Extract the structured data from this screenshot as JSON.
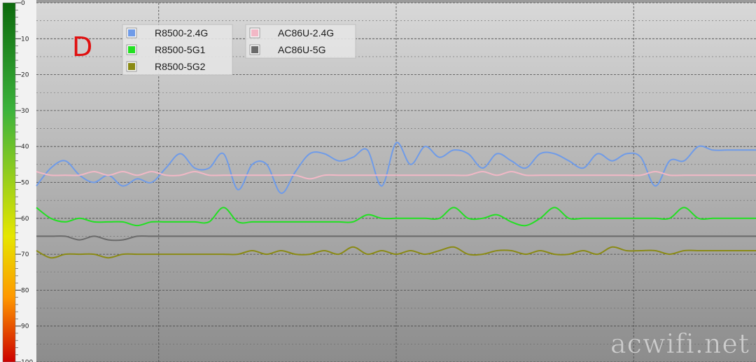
{
  "chart_data": {
    "type": "line",
    "ylim": [
      0,
      100
    ],
    "y_ticks": [
      "0",
      "10",
      "20",
      "30",
      "40",
      "50",
      "60",
      "70",
      "80",
      "90",
      "100"
    ],
    "x": [
      0,
      2,
      4,
      6,
      8,
      10,
      12,
      14,
      16,
      18,
      20,
      22,
      24,
      26,
      28,
      30,
      32,
      34,
      36,
      38,
      40,
      42,
      44,
      46,
      48,
      50,
      52,
      54,
      56,
      58,
      60,
      62,
      64,
      66,
      68,
      70,
      72,
      74,
      76,
      78,
      80,
      82,
      84,
      86,
      88,
      90,
      92,
      94,
      96,
      98,
      100
    ],
    "series": [
      {
        "name": "R8500-2.4G",
        "color": "#6f9be8",
        "values": [
          51,
          46,
          44,
          48,
          50,
          48,
          51,
          49,
          50,
          46,
          42,
          46,
          46,
          42,
          52,
          45,
          45,
          53,
          47,
          42,
          42,
          44,
          43,
          41,
          51,
          39,
          45,
          40,
          43,
          41,
          42,
          46,
          42,
          44,
          46,
          42,
          42,
          44,
          46,
          42,
          44,
          42,
          43,
          51,
          44,
          44,
          40,
          41,
          41,
          41,
          41
        ]
      },
      {
        "name": "AC86U-2.4G",
        "color": "#f2b8c6",
        "values": [
          47,
          48,
          48,
          48,
          47,
          48,
          47,
          48,
          47,
          48,
          48,
          47,
          48,
          48,
          48,
          48,
          48,
          48,
          48,
          49,
          48,
          48,
          48,
          48,
          48,
          48,
          48,
          48,
          48,
          48,
          48,
          47,
          48,
          47,
          48,
          48,
          48,
          48,
          48,
          48,
          48,
          48,
          48,
          47,
          48,
          48,
          48,
          48,
          48,
          48,
          48
        ]
      },
      {
        "name": "R8500-5G1",
        "color": "#22e022",
        "values": [
          57,
          60,
          61,
          60,
          61,
          61,
          61,
          62,
          61,
          61,
          61,
          61,
          61,
          57,
          61,
          61,
          61,
          61,
          61,
          61,
          61,
          61,
          61,
          59,
          60,
          60,
          60,
          60,
          60,
          57,
          60,
          60,
          59,
          61,
          62,
          60,
          57,
          60,
          60,
          60,
          60,
          60,
          60,
          60,
          60,
          57,
          60,
          60,
          60,
          60,
          60
        ]
      },
      {
        "name": "AC86U-5G",
        "color": "#6a6a6a",
        "values": [
          65,
          65,
          65,
          66,
          65,
          66,
          66,
          65,
          65,
          65,
          65,
          65,
          65,
          65,
          65,
          65,
          65,
          65,
          65,
          65,
          65,
          65,
          65,
          65,
          65,
          65,
          65,
          65,
          65,
          65,
          65,
          65,
          65,
          65,
          65,
          65,
          65,
          65,
          65,
          65,
          65,
          65,
          65,
          65,
          65,
          65,
          65,
          65,
          65,
          65,
          65
        ]
      },
      {
        "name": "R8500-5G2",
        "color": "#8a8a14",
        "values": [
          69,
          71,
          70,
          70,
          70,
          71,
          70,
          70,
          70,
          70,
          70,
          70,
          70,
          70,
          70,
          69,
          70,
          69,
          70,
          70,
          69,
          70,
          68,
          70,
          69,
          70,
          69,
          70,
          69,
          68,
          70,
          70,
          69,
          69,
          70,
          69,
          70,
          70,
          69,
          70,
          68,
          69,
          69,
          69,
          70,
          69,
          69,
          69,
          69,
          69,
          69
        ]
      }
    ],
    "legend": {
      "placement": "top-left",
      "columns": [
        [
          "R8500-2.4G",
          "R8500-5G1",
          "R8500-5G2"
        ],
        [
          "AC86U-2.4G",
          "AC86U-5G"
        ]
      ]
    },
    "annotation": "D",
    "watermark": "acwifi.net",
    "grid": true,
    "colorbar": {
      "colors": [
        "#0d6a0d",
        "#3cb33c",
        "#d6e000",
        "#ff9800",
        "#d20000"
      ]
    }
  }
}
